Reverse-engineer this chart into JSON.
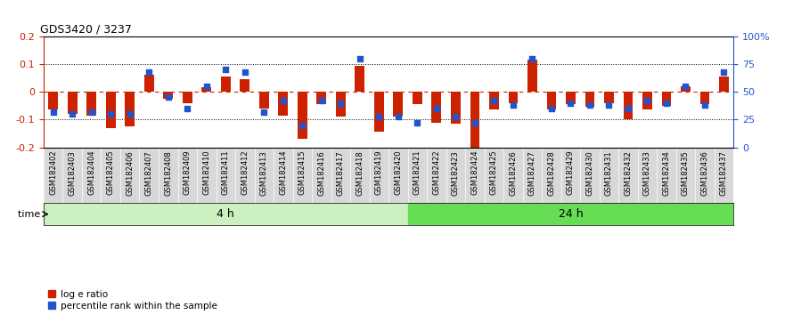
{
  "title": "GDS3420 / 3237",
  "samples": [
    "GSM182402",
    "GSM182403",
    "GSM182404",
    "GSM182405",
    "GSM182406",
    "GSM182407",
    "GSM182408",
    "GSM182409",
    "GSM182410",
    "GSM182411",
    "GSM182412",
    "GSM182413",
    "GSM182414",
    "GSM182415",
    "GSM182416",
    "GSM182417",
    "GSM182418",
    "GSM182419",
    "GSM182420",
    "GSM182421",
    "GSM182422",
    "GSM182423",
    "GSM182424",
    "GSM182425",
    "GSM182426",
    "GSM182427",
    "GSM182428",
    "GSM182429",
    "GSM182430",
    "GSM182431",
    "GSM182432",
    "GSM182433",
    "GSM182434",
    "GSM182435",
    "GSM182436",
    "GSM182437"
  ],
  "log_ratio": [
    -0.065,
    -0.08,
    -0.085,
    -0.13,
    -0.125,
    0.062,
    -0.025,
    -0.04,
    0.015,
    0.055,
    0.045,
    -0.06,
    -0.085,
    -0.17,
    -0.045,
    -0.09,
    0.095,
    -0.145,
    -0.09,
    -0.045,
    -0.11,
    -0.115,
    -0.2,
    -0.065,
    -0.04,
    0.115,
    -0.065,
    -0.045,
    -0.055,
    -0.04,
    -0.1,
    -0.065,
    -0.05,
    0.02,
    -0.045,
    0.055
  ],
  "percentile": [
    32,
    30,
    32,
    30,
    30,
    68,
    45,
    35,
    55,
    70,
    68,
    32,
    42,
    20,
    42,
    40,
    80,
    28,
    28,
    22,
    35,
    28,
    22,
    42,
    38,
    80,
    35,
    40,
    38,
    38,
    35,
    42,
    40,
    55,
    38,
    68
  ],
  "group_4h_count": 19,
  "group_labels": [
    "4 h",
    "24 h"
  ],
  "group_color_4h": "#ccf0c0",
  "group_color_24h": "#66dd55",
  "bar_color": "#cc2200",
  "dot_color": "#2255cc",
  "ylim_left": [
    -0.2,
    0.2
  ],
  "ylim_right": [
    0,
    100
  ],
  "yticks_left": [
    -0.2,
    -0.1,
    0.0,
    0.1,
    0.2
  ],
  "ytick_labels_left": [
    "-0.2",
    "-0.1",
    "0",
    "0.1",
    "0.2"
  ],
  "yticks_right": [
    0,
    25,
    50,
    75,
    100
  ],
  "ytick_labels_right": [
    "0",
    "25",
    "50",
    "75",
    "100%"
  ],
  "zero_line_color": "#cc2200",
  "dotted_color": "black",
  "legend_log": "log e ratio",
  "legend_pct": "percentile rank within the sample"
}
